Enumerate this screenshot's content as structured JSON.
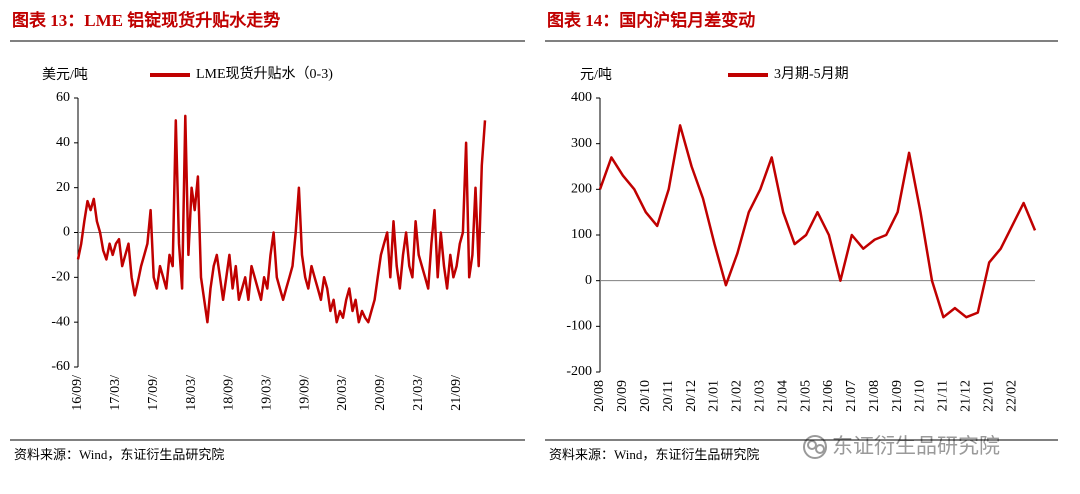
{
  "chart_data": [
    {
      "type": "line",
      "title": "图表 13：LME 铝锭现货升贴水走势",
      "y_label": "美元/吨",
      "source": "资料来源：Wind，东证衍生品研究院",
      "ylim": [
        -60,
        60
      ],
      "yticks": [
        60,
        40,
        20,
        0,
        -20,
        -40,
        -60
      ],
      "categories": [
        "16/09/",
        null,
        null,
        null,
        null,
        null,
        null,
        null,
        null,
        null,
        null,
        null,
        "17/03/",
        null,
        null,
        null,
        null,
        null,
        null,
        null,
        null,
        null,
        null,
        null,
        "17/09/",
        null,
        null,
        null,
        null,
        null,
        null,
        null,
        null,
        null,
        null,
        null,
        "18/03/",
        null,
        null,
        null,
        null,
        null,
        null,
        null,
        null,
        null,
        null,
        null,
        "18/09/",
        null,
        null,
        null,
        null,
        null,
        null,
        null,
        null,
        null,
        null,
        null,
        "19/03/",
        null,
        null,
        null,
        null,
        null,
        null,
        null,
        null,
        null,
        null,
        null,
        "19/09/",
        null,
        null,
        null,
        null,
        null,
        null,
        null,
        null,
        null,
        null,
        null,
        "20/03/",
        null,
        null,
        null,
        null,
        null,
        null,
        null,
        null,
        null,
        null,
        null,
        "20/09/",
        null,
        null,
        null,
        null,
        null,
        null,
        null,
        null,
        null,
        null,
        null,
        "21/03/",
        null,
        null,
        null,
        null,
        null,
        null,
        null,
        null,
        null,
        null,
        null,
        "21/09/",
        null,
        null,
        null,
        null,
        null,
        null,
        null,
        null,
        null
      ],
      "series": [
        {
          "name": "LME现货升贴水（0-3)",
          "color": "#c00000",
          "values": [
            -12,
            -5,
            5,
            14,
            10,
            15,
            5,
            0,
            -8,
            -12,
            -5,
            -10,
            -5,
            -3,
            -15,
            -10,
            -5,
            -20,
            -28,
            -22,
            -15,
            -10,
            -5,
            10,
            -20,
            -25,
            -15,
            -20,
            -25,
            -10,
            -15,
            50,
            -5,
            -25,
            52,
            -10,
            20,
            10,
            25,
            -20,
            -30,
            -40,
            -25,
            -15,
            -10,
            -20,
            -30,
            -20,
            -10,
            -25,
            -15,
            -30,
            -25,
            -20,
            -30,
            -15,
            -20,
            -25,
            -30,
            -20,
            -25,
            -10,
            0,
            -20,
            -25,
            -30,
            -25,
            -20,
            -15,
            0,
            20,
            -10,
            -20,
            -25,
            -15,
            -20,
            -25,
            -30,
            -20,
            -25,
            -35,
            -30,
            -40,
            -35,
            -38,
            -30,
            -25,
            -35,
            -30,
            -40,
            -35,
            -38,
            -40,
            -35,
            -30,
            -20,
            -10,
            -5,
            0,
            -20,
            5,
            -15,
            -25,
            -10,
            0,
            -15,
            -20,
            5,
            -10,
            -15,
            -20,
            -25,
            -5,
            10,
            -20,
            0,
            -15,
            -25,
            -10,
            -20,
            -15,
            -5,
            0,
            40,
            -20,
            -10,
            20,
            -15,
            30,
            50
          ]
        }
      ]
    },
    {
      "type": "line",
      "title": "图表 14：国内沪铝月差变动",
      "y_label": "元/吨",
      "source": "资料来源：Wind，东证衍生品研究院",
      "ylim": [
        -200,
        400
      ],
      "yticks": [
        400,
        300,
        200,
        100,
        0,
        -100,
        -200
      ],
      "categories": [
        "20/08",
        null,
        "20/09",
        null,
        "20/10",
        null,
        "20/11",
        null,
        "20/12",
        null,
        "21/01",
        null,
        "21/02",
        null,
        "21/03",
        null,
        "21/04",
        null,
        "21/05",
        null,
        "21/06",
        null,
        "21/07",
        null,
        "21/08",
        null,
        "21/09",
        null,
        "21/10",
        null,
        "21/11",
        null,
        "21/12",
        null,
        "22/01",
        null,
        "22/02",
        null,
        null
      ],
      "series": [
        {
          "name": "3月期-5月期",
          "color": "#c00000",
          "values": [
            200,
            270,
            230,
            200,
            150,
            120,
            200,
            340,
            250,
            180,
            80,
            -10,
            60,
            150,
            200,
            270,
            150,
            80,
            100,
            150,
            100,
            0,
            100,
            70,
            90,
            100,
            150,
            280,
            150,
            0,
            -80,
            -60,
            -80,
            -70,
            40,
            70,
            120,
            170,
            110
          ]
        }
      ]
    }
  ],
  "watermark": "东证衍生品研究院"
}
